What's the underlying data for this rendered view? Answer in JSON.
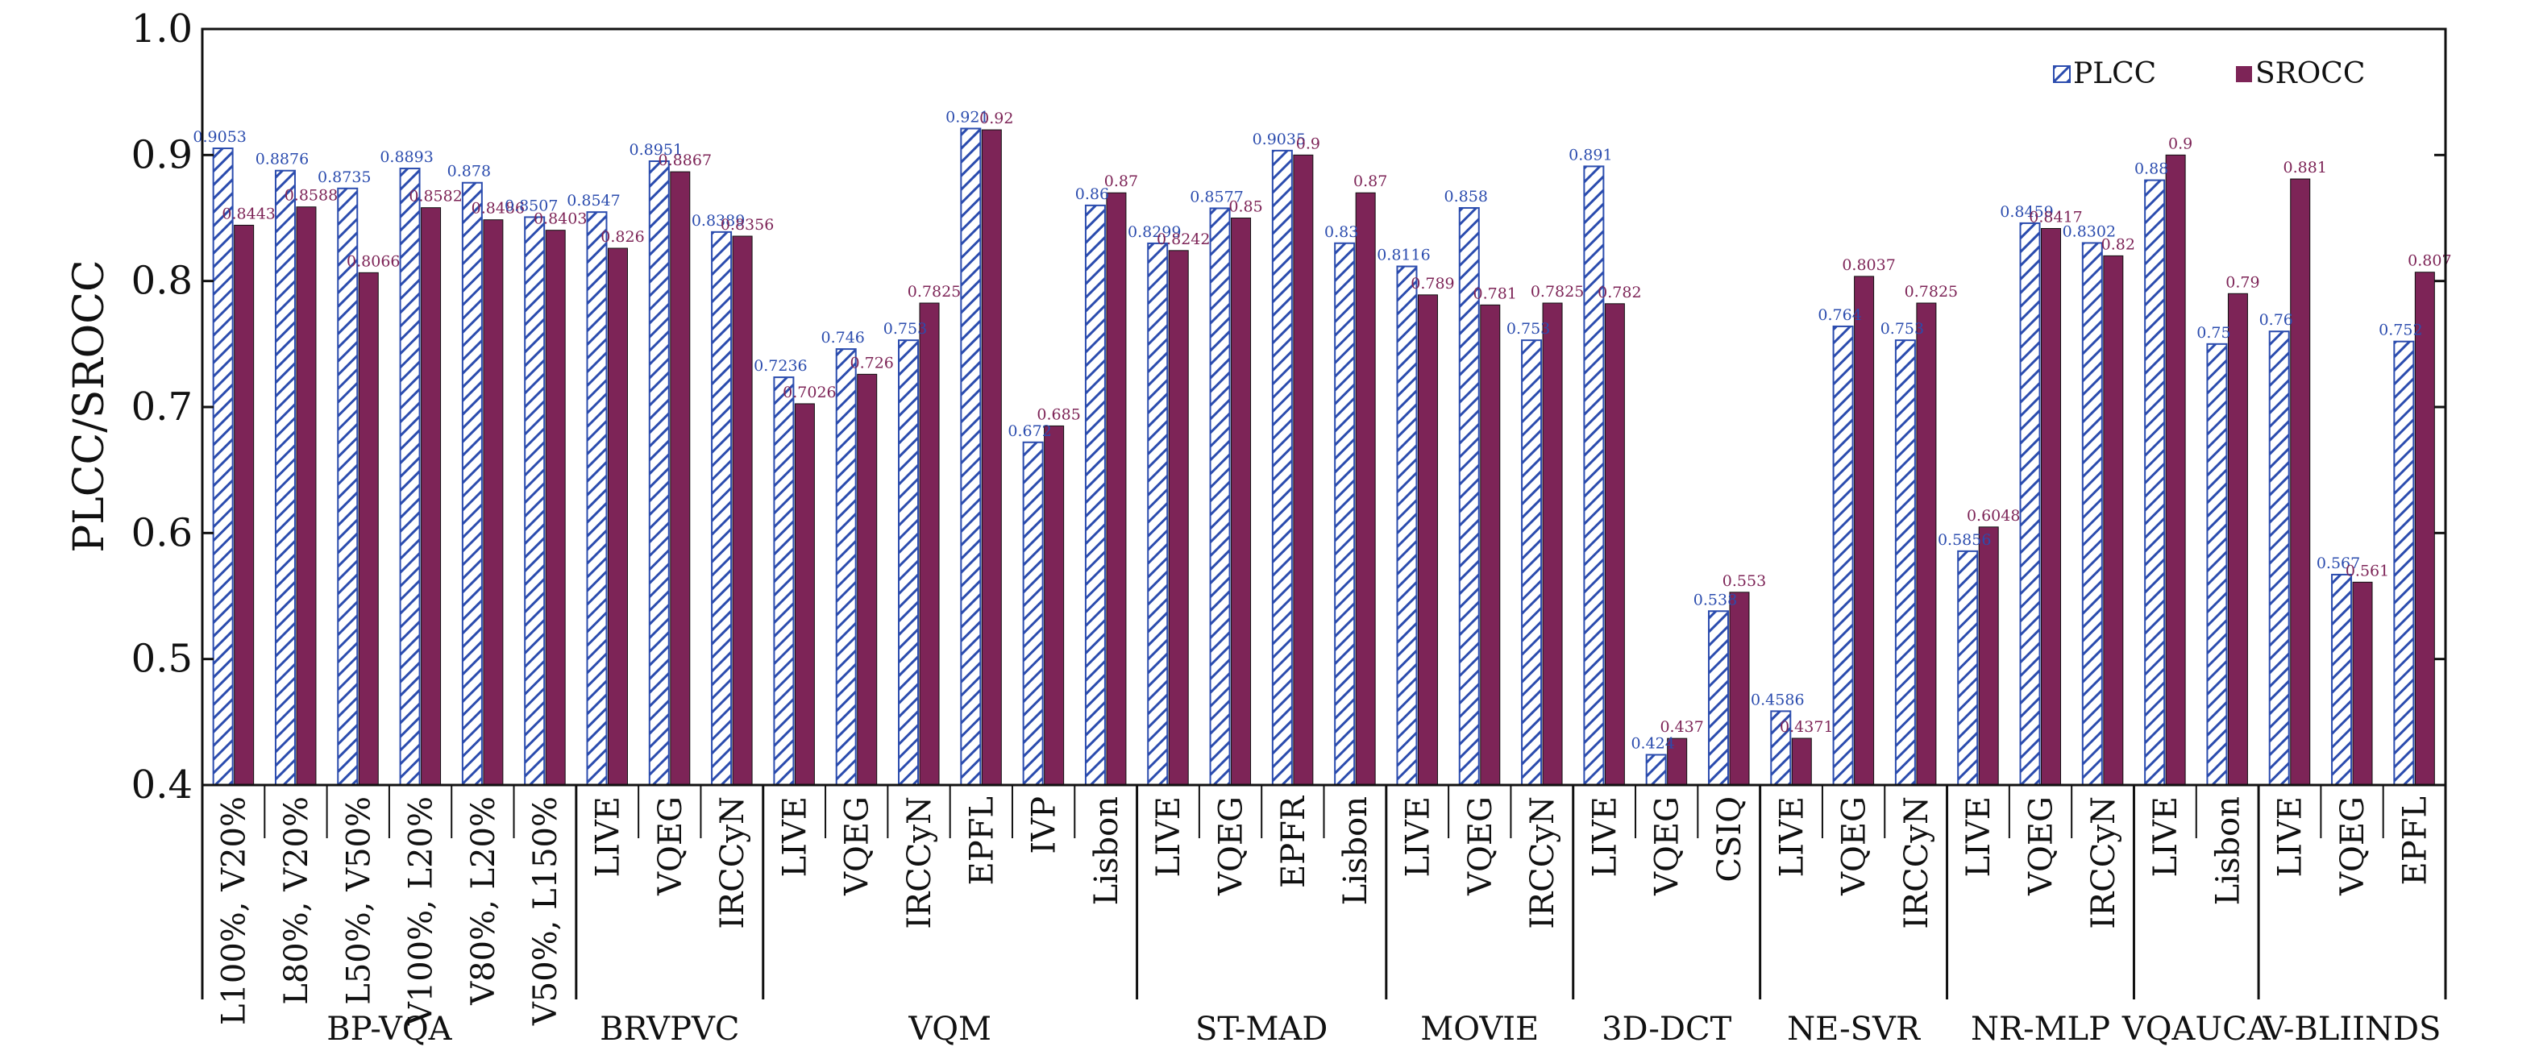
{
  "chart_data": {
    "type": "bar",
    "ylabel": "PLCC/SROCC",
    "ylim": [
      0.4,
      1.0
    ],
    "yticks": [
      "0.4",
      "0.5",
      "0.6",
      "0.7",
      "0.8",
      "0.9",
      "1.0"
    ],
    "legend": {
      "position": "top-right",
      "entries": [
        "PLCC",
        "SROCC"
      ]
    },
    "colors": {
      "plcc": "#2b4cae",
      "srocc": "#7d2457",
      "plcc_label": "#2b4cae",
      "srocc_label": "#7d2457"
    },
    "series": [
      {
        "name": "PLCC",
        "values": [
          0.9053,
          0.8876,
          0.8735,
          0.8893,
          0.878,
          0.8507,
          0.8547,
          0.8951,
          0.8389,
          0.7236,
          0.746,
          0.753,
          0.921,
          0.672,
          0.86,
          0.8299,
          0.8577,
          0.9035,
          0.83,
          0.8116,
          0.858,
          0.753,
          0.891,
          0.424,
          0.538,
          0.4586,
          0.764,
          0.753,
          0.5856,
          0.8459,
          0.8302,
          0.88,
          0.75,
          0.76,
          0.567,
          0.752
        ]
      },
      {
        "name": "SROCC",
        "values": [
          0.8443,
          0.8588,
          0.8066,
          0.8582,
          0.8486,
          0.8403,
          0.826,
          0.8867,
          0.8356,
          0.7026,
          0.726,
          0.7825,
          0.92,
          0.685,
          0.87,
          0.8242,
          0.85,
          0.9,
          0.87,
          0.789,
          0.781,
          0.7825,
          0.782,
          0.437,
          0.553,
          0.4371,
          0.8037,
          0.7825,
          0.6048,
          0.8417,
          0.82,
          0.9,
          0.79,
          0.881,
          0.561,
          0.807
        ]
      }
    ],
    "value_labels": {
      "PLCC": [
        "0.9053",
        "0.8876",
        "0.8735",
        "0.8893",
        "0.878",
        "0.8507",
        "0.8547",
        "0.8951",
        "0.8389",
        "0.7236",
        "0.746",
        "0.753",
        "0.921",
        "0.672",
        "0.86",
        "0.8299",
        "0.8577",
        "0.9035",
        "0.83",
        "0.8116",
        "0.858",
        "0.753",
        "0.891",
        "0.424",
        "0.538",
        "0.4586",
        "0.764",
        "0.753",
        "0.5856",
        "0.8459",
        "0.8302",
        "0.88",
        "0.75",
        "0.76",
        "0.567",
        "0.752"
      ],
      "SROCC": [
        "0.8443",
        "0.8588",
        "0.8066",
        "0.8582",
        "0.8486",
        "0.8403",
        "0.826",
        "0.8867",
        "0.8356",
        "0.7026",
        "0.726",
        "0.7825",
        "0.92",
        "0.685",
        "0.87",
        "0.8242",
        "0.85",
        "0.9",
        "0.87",
        "0.789",
        "0.781",
        "0.7825",
        "0.782",
        "0.437",
        "0.553",
        "0.4371",
        "0.8037",
        "0.7825",
        "0.6048",
        "0.8417",
        "0.82",
        "0.9",
        "0.79",
        "0.881",
        "0.561",
        "0.807"
      ]
    },
    "categories": [
      "L100%, V20%",
      "L80%, V20%",
      "L50%, V50%",
      "V100%, L20%",
      "V80%, L20%",
      "V50%, L150%",
      "LIVE",
      "VQEG",
      "IRCCyN",
      "LIVE",
      "VQEG",
      "IRCCyN",
      "EPFL",
      "IVP",
      "Lisbon",
      "LIVE",
      "VQEG",
      "EPFR",
      "Lisbon",
      "LIVE",
      "VQEG",
      "IRCCyN",
      "LIVE",
      "VQEG",
      "CSIQ",
      "LIVE",
      "VQEG",
      "IRCCyN",
      "LIVE",
      "VQEG",
      "IRCCyN",
      "LIVE",
      "Lisbon",
      "LIVE",
      "VQEG",
      "EPFL"
    ],
    "groups": [
      {
        "name": "BP-VQA",
        "count": 6
      },
      {
        "name": "BRVPVC",
        "count": 3
      },
      {
        "name": "VQM",
        "count": 6
      },
      {
        "name": "ST-MAD",
        "count": 4
      },
      {
        "name": "MOVIE",
        "count": 3
      },
      {
        "name": "3D-DCT",
        "count": 3
      },
      {
        "name": "NE-SVR",
        "count": 3
      },
      {
        "name": "NR-MLP",
        "count": 3
      },
      {
        "name": "VQAUCA",
        "count": 2
      },
      {
        "name": "V-BLIINDS",
        "count": 3
      }
    ]
  }
}
